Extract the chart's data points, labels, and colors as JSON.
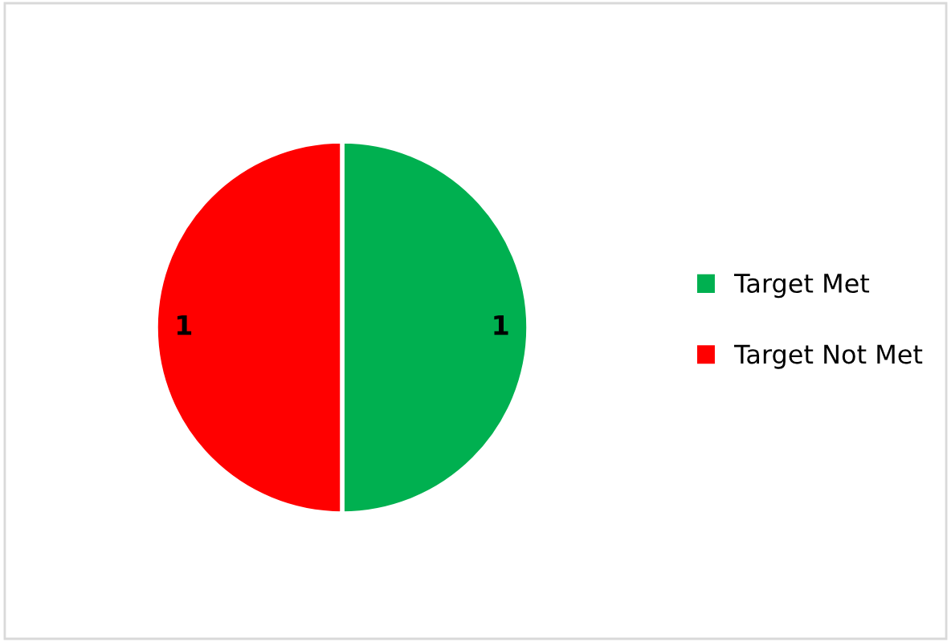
{
  "chart_data": {
    "type": "pie",
    "categories": [
      "Target Met",
      "Target Not Met"
    ],
    "values": [
      1,
      1
    ],
    "colors": [
      "#00b050",
      "#ff0000"
    ],
    "data_labels": true,
    "legend": "right"
  }
}
